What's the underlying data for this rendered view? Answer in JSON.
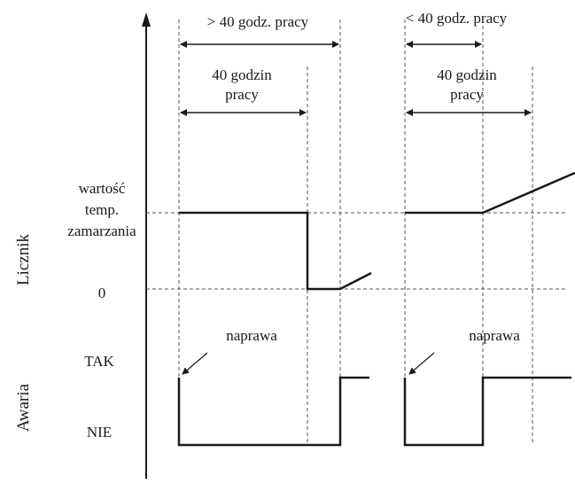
{
  "diagram": {
    "y_axis_label_counter": "Licznik",
    "y_axis_label_failure": "Awaria",
    "counter_levels": {
      "freeze_value": [
        "wartość",
        "temp.",
        "zamarzania"
      ],
      "zero": "0"
    },
    "failure_levels": {
      "yes": "TAK",
      "no": "NIE"
    },
    "left_case": {
      "top_interval": "> 40 godz. pracy",
      "inner_interval": [
        "40 godzin",
        "pracy"
      ],
      "repair": "naprawa"
    },
    "right_case": {
      "top_interval": "< 40 godz. pracy",
      "inner_interval": [
        "40 godzin",
        "pracy"
      ],
      "repair": "naprawa"
    }
  }
}
